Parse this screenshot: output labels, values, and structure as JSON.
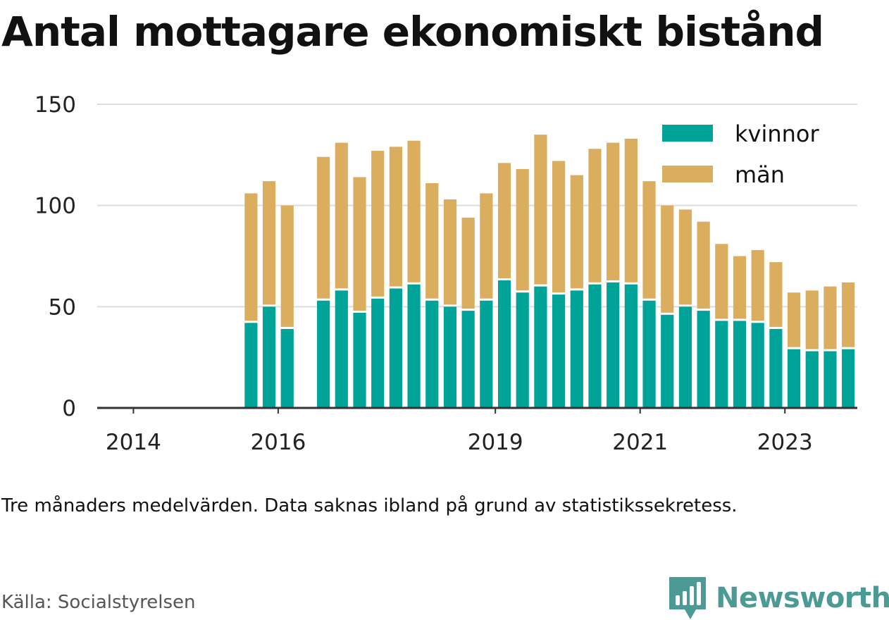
{
  "title": "Antal mottagare ekonomiskt bistånd",
  "note": "Tre månaders medelvärden. Data saknas ibland på grund av statistikssekretess.",
  "source": "Källa: Socialstyrelsen",
  "brand": {
    "name": "Newsworthy",
    "icon": "newsworthy-logo-icon",
    "color": "#4b9a95"
  },
  "colors": {
    "kvinnor": "#00a398",
    "man": "#dbad5e",
    "grid": "#dddddd",
    "axis": "#333333"
  },
  "chart_data": {
    "type": "bar",
    "stacked": true,
    "title": "Antal mottagare ekonomiskt bistånd",
    "xlabel": "",
    "ylabel": "",
    "ylim": [
      0,
      150
    ],
    "yticks": [
      0,
      50,
      100,
      150
    ],
    "xlim": [
      2013.5,
      2024.0
    ],
    "xticks": [
      2014,
      2016,
      2019,
      2021,
      2023
    ],
    "grid": true,
    "legend_position": "top-right",
    "x": [
      2015.625,
      2015.875,
      2016.125,
      2016.625,
      2016.875,
      2017.125,
      2017.375,
      2017.625,
      2017.875,
      2018.125,
      2018.375,
      2018.625,
      2018.875,
      2019.125,
      2019.375,
      2019.625,
      2019.875,
      2020.125,
      2020.375,
      2020.625,
      2020.875,
      2021.125,
      2021.375,
      2021.625,
      2021.875,
      2022.125,
      2022.375,
      2022.625,
      2022.875,
      2023.125,
      2023.375,
      2023.625,
      2023.875
    ],
    "series": [
      {
        "name": "kvinnor",
        "color": "#00a398",
        "values": [
          42,
          50,
          39,
          53,
          58,
          47,
          54,
          59,
          61,
          53,
          50,
          48,
          53,
          63,
          57,
          60,
          56,
          58,
          61,
          62,
          61,
          53,
          46,
          50,
          48,
          43,
          43,
          42,
          39,
          29,
          28,
          28,
          29
        ]
      },
      {
        "name": "män",
        "color": "#dbad5e",
        "values": [
          64,
          62,
          61,
          71,
          73,
          67,
          73,
          70,
          71,
          58,
          53,
          46,
          53,
          58,
          61,
          75,
          66,
          57,
          67,
          69,
          72,
          59,
          54,
          48,
          44,
          38,
          32,
          36,
          33,
          28,
          30,
          32,
          33
        ]
      }
    ]
  }
}
